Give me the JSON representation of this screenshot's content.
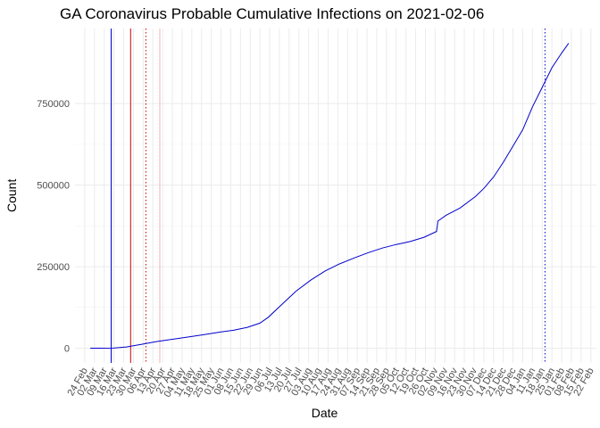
{
  "chart_data": {
    "type": "line",
    "title": "GA Coronavirus Probable Cumulative Infections on 2021-02-06",
    "xlabel": "Date",
    "ylabel": "Count",
    "ylim": [
      -45000,
      980000
    ],
    "xlim": [
      "2020-02-17",
      "2021-02-26"
    ],
    "yticks": [
      0,
      250000,
      500000,
      750000
    ],
    "ytick_labels": [
      "0",
      "250000",
      "500000",
      "750000"
    ],
    "xtick_dates": [
      "2020-02-24",
      "2020-03-02",
      "2020-03-09",
      "2020-03-16",
      "2020-03-23",
      "2020-03-30",
      "2020-04-06",
      "2020-04-13",
      "2020-04-20",
      "2020-04-27",
      "2020-05-04",
      "2020-05-11",
      "2020-05-18",
      "2020-05-25",
      "2020-06-01",
      "2020-06-08",
      "2020-06-15",
      "2020-06-22",
      "2020-06-29",
      "2020-07-06",
      "2020-07-13",
      "2020-07-20",
      "2020-07-27",
      "2020-08-03",
      "2020-08-10",
      "2020-08-17",
      "2020-08-24",
      "2020-08-31",
      "2020-09-07",
      "2020-09-14",
      "2020-09-21",
      "2020-09-28",
      "2020-10-05",
      "2020-10-12",
      "2020-10-19",
      "2020-10-26",
      "2020-11-02",
      "2020-11-09",
      "2020-11-16",
      "2020-11-23",
      "2020-11-30",
      "2020-12-07",
      "2020-12-14",
      "2020-12-21",
      "2020-12-28",
      "2021-01-04",
      "2021-01-11",
      "2021-01-18",
      "2021-01-25",
      "2021-02-01",
      "2021-02-08",
      "2021-02-15",
      "2021-02-22"
    ],
    "xtick_labels": [
      "24 Feb",
      "02 Mar",
      "09 Mar",
      "16 Mar",
      "23 Mar",
      "30 Mar",
      "06 Apr",
      "13 Apr",
      "20 Apr",
      "27 Apr",
      "04 May",
      "11 May",
      "18 May",
      "25 May",
      "01 Jun",
      "08 Jun",
      "15 Jun",
      "22 Jun",
      "29 Jun",
      "06 Jul",
      "13 Jul",
      "20 Jul",
      "27 Jul",
      "03 Aug",
      "10 Aug",
      "17 Aug",
      "24 Aug",
      "31 Aug",
      "07 Sep",
      "14 Sep",
      "21 Sep",
      "28 Sep",
      "05 Oct",
      "12 Oct",
      "19 Oct",
      "26 Oct",
      "02 Nov",
      "09 Nov",
      "16 Nov",
      "23 Nov",
      "30 Nov",
      "07 Dec",
      "14 Dec",
      "21 Dec",
      "28 Dec",
      "04 Jan",
      "11 Jan",
      "18 Jan",
      "25 Jan",
      "01 Feb",
      "08 Feb",
      "15 Feb",
      "22 Feb"
    ],
    "grid": true,
    "series": [
      {
        "color": "#0000cc",
        "points": [
          [
            "2020-02-28",
            0
          ],
          [
            "2020-03-05",
            0
          ],
          [
            "2020-03-15",
            500
          ],
          [
            "2020-03-25",
            4000
          ],
          [
            "2020-04-05",
            12000
          ],
          [
            "2020-04-15",
            20000
          ],
          [
            "2020-05-01",
            30000
          ],
          [
            "2020-05-20",
            42000
          ],
          [
            "2020-06-01",
            50000
          ],
          [
            "2020-06-10",
            55000
          ],
          [
            "2020-06-20",
            64000
          ],
          [
            "2020-06-29",
            77000
          ],
          [
            "2020-07-05",
            95000
          ],
          [
            "2020-07-15",
            135000
          ],
          [
            "2020-07-25",
            175000
          ],
          [
            "2020-08-05",
            210000
          ],
          [
            "2020-08-15",
            237000
          ],
          [
            "2020-08-25",
            258000
          ],
          [
            "2020-09-05",
            277000
          ],
          [
            "2020-09-15",
            293000
          ],
          [
            "2020-09-25",
            307000
          ],
          [
            "2020-10-05",
            318000
          ],
          [
            "2020-10-15",
            327000
          ],
          [
            "2020-10-25",
            340000
          ],
          [
            "2020-11-03",
            358000
          ],
          [
            "2020-11-04",
            390000
          ],
          [
            "2020-11-10",
            408000
          ],
          [
            "2020-11-20",
            430000
          ],
          [
            "2020-12-01",
            465000
          ],
          [
            "2020-12-07",
            490000
          ],
          [
            "2020-12-14",
            525000
          ],
          [
            "2020-12-21",
            570000
          ],
          [
            "2020-12-28",
            620000
          ],
          [
            "2021-01-04",
            670000
          ],
          [
            "2021-01-11",
            740000
          ],
          [
            "2021-01-18",
            800000
          ],
          [
            "2021-01-25",
            860000
          ],
          [
            "2021-02-01",
            905000
          ],
          [
            "2021-02-06",
            935000
          ]
        ]
      }
    ],
    "vlines": [
      {
        "date": "2020-03-14",
        "color": "#0000cc",
        "style": "solid"
      },
      {
        "date": "2020-03-28",
        "color": "#cc0000",
        "style": "solid"
      },
      {
        "date": "2020-04-08",
        "color": "#cc0000",
        "style": "dotted"
      },
      {
        "date": "2020-04-18",
        "color": "#f4b0b0",
        "style": "solid"
      },
      {
        "date": "2021-01-20",
        "color": "#0000cc",
        "style": "dotted"
      }
    ]
  }
}
